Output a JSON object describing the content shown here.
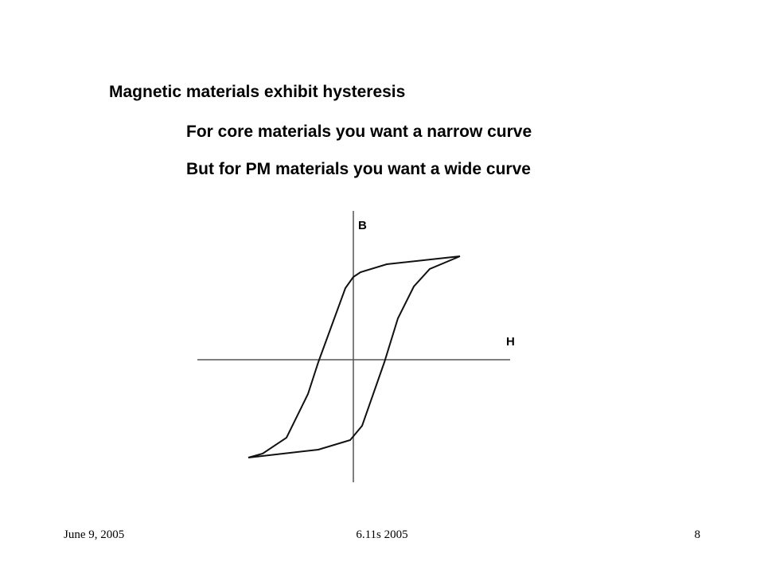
{
  "slide": {
    "title": "Magnetic materials exhibit hysteresis",
    "points": [
      "For core materials you want a narrow curve",
      "But for PM materials you want a wide curve"
    ]
  },
  "diagram": {
    "y_axis_label": "B",
    "x_axis_label": "H"
  },
  "footer": {
    "date": "June 9, 2005",
    "course": "6.11s 2005",
    "page": "8"
  }
}
